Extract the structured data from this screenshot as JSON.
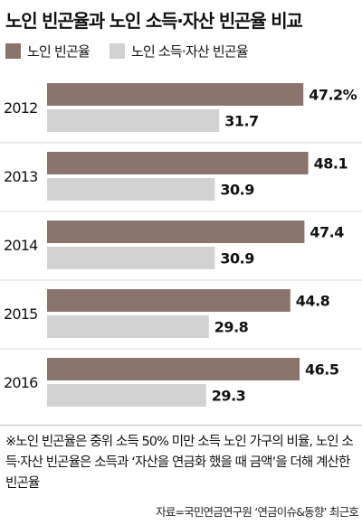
{
  "title": "노인 빈곤율과 노인 소득·자산 빈곤율 비교",
  "note": "※노인 빈곤율은 중위 소득 50% 미만 소득 노인 가구의 비율, 노인 소득·자산 빈곤율은 소득과 ‘자산을 연금화 했을 때 금액’을 더해 계산한 빈곤율",
  "source": "자료=국민연금연구원 ‘연금이슈&동향’ 최근호",
  "colors": {
    "series1": "#8a746c",
    "series2": "#d2d2d2"
  },
  "chart_data": {
    "type": "bar",
    "orientation": "horizontal",
    "title": "노인 빈곤율과 노인 소득·자산 빈곤율 비교",
    "categories": [
      "2012",
      "2013",
      "2014",
      "2015",
      "2016"
    ],
    "series": [
      {
        "name": "노인 빈곤율",
        "values": [
          47.2,
          48.1,
          47.4,
          44.8,
          46.5
        ],
        "labels": [
          "47.2%",
          "48.1",
          "47.4",
          "44.8",
          "46.5"
        ]
      },
      {
        "name": "노인 소득·자산 빈곤율",
        "values": [
          31.7,
          30.9,
          30.9,
          29.8,
          29.3
        ],
        "labels": [
          "31.7",
          "30.9",
          "30.9",
          "29.8",
          "29.3"
        ]
      }
    ],
    "legend_position": "top-left",
    "grid": false,
    "xlim": [
      0,
      60
    ]
  }
}
